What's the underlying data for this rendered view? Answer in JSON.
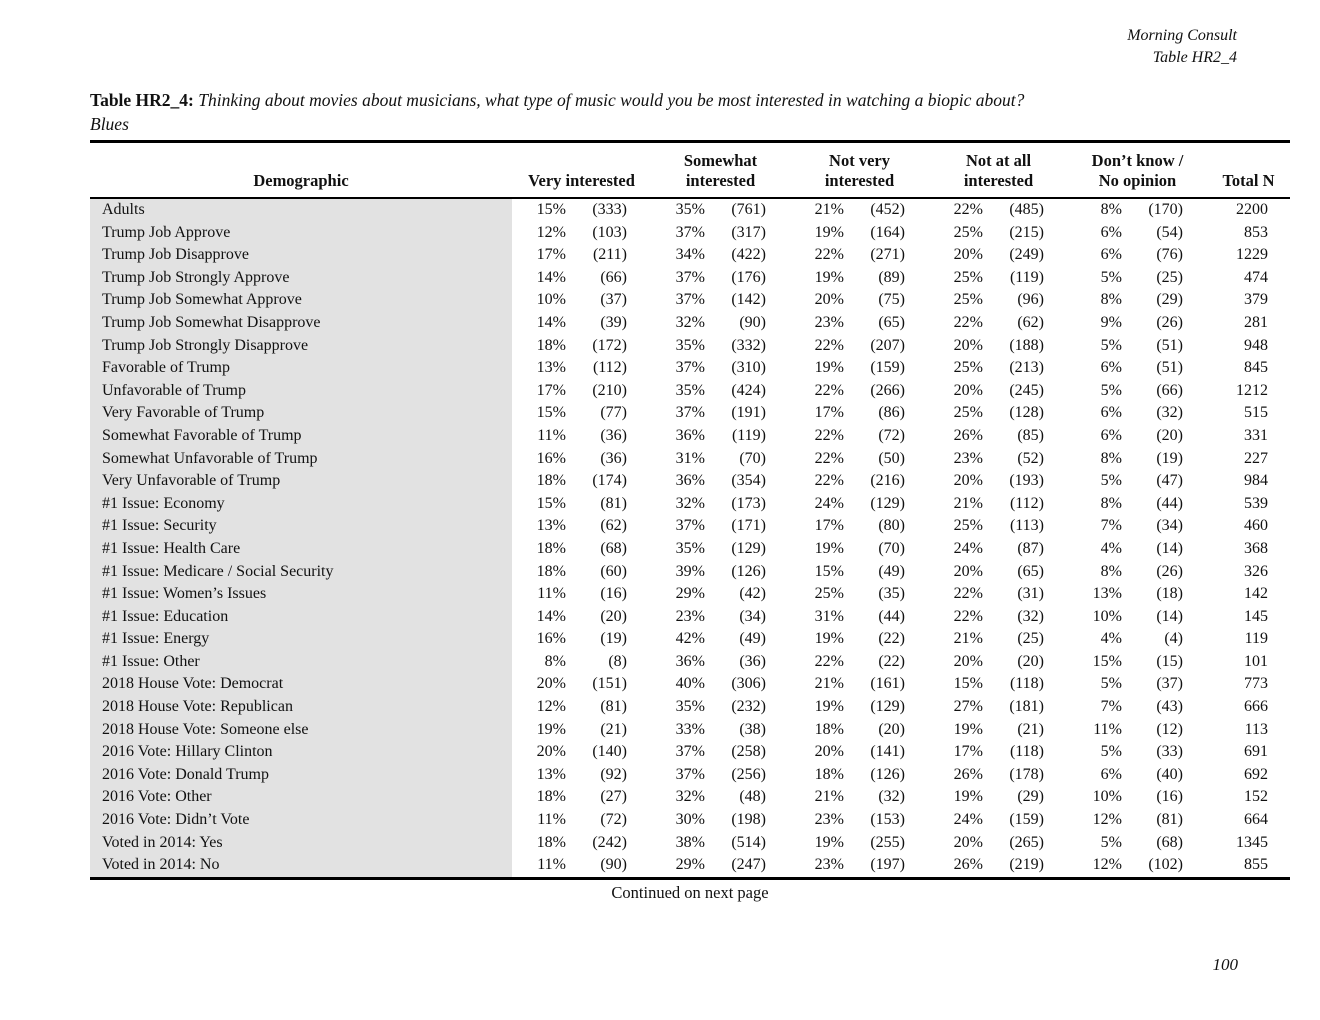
{
  "page": {
    "brand": "Morning Consult",
    "table_ref": "Table HR2_4",
    "continued_note": "Continued on next page",
    "page_number": "100"
  },
  "title": {
    "prefix": "Table HR2_4:",
    "question": "Thinking about movies about musicians, what type of music would you be most interested in watching a biopic about?",
    "subject": "Blues"
  },
  "table": {
    "demographic_header": "Demographic",
    "total_header": "Total N",
    "group_headers": [
      [
        "",
        "Very interested"
      ],
      [
        "Somewhat",
        "interested"
      ],
      [
        "Not very",
        "interested"
      ],
      [
        "Not at all",
        "interested"
      ],
      [
        "Don’t know /",
        "No opinion"
      ]
    ],
    "rows": [
      {
        "demographic": "Adults",
        "values": [
          "15%",
          "(333)",
          "35%",
          "(761)",
          "21%",
          "(452)",
          "22%",
          "(485)",
          "8%",
          "(170)"
        ],
        "total": "2200"
      },
      {
        "demographic": "Trump Job Approve",
        "values": [
          "12%",
          "(103)",
          "37%",
          "(317)",
          "19%",
          "(164)",
          "25%",
          "(215)",
          "6%",
          "(54)"
        ],
        "total": "853"
      },
      {
        "demographic": "Trump Job Disapprove",
        "values": [
          "17%",
          "(211)",
          "34%",
          "(422)",
          "22%",
          "(271)",
          "20%",
          "(249)",
          "6%",
          "(76)"
        ],
        "total": "1229"
      },
      {
        "demographic": "Trump Job Strongly Approve",
        "values": [
          "14%",
          "(66)",
          "37%",
          "(176)",
          "19%",
          "(89)",
          "25%",
          "(119)",
          "5%",
          "(25)"
        ],
        "total": "474"
      },
      {
        "demographic": "Trump Job Somewhat Approve",
        "values": [
          "10%",
          "(37)",
          "37%",
          "(142)",
          "20%",
          "(75)",
          "25%",
          "(96)",
          "8%",
          "(29)"
        ],
        "total": "379"
      },
      {
        "demographic": "Trump Job Somewhat Disapprove",
        "values": [
          "14%",
          "(39)",
          "32%",
          "(90)",
          "23%",
          "(65)",
          "22%",
          "(62)",
          "9%",
          "(26)"
        ],
        "total": "281"
      },
      {
        "demographic": "Trump Job Strongly Disapprove",
        "values": [
          "18%",
          "(172)",
          "35%",
          "(332)",
          "22%",
          "(207)",
          "20%",
          "(188)",
          "5%",
          "(51)"
        ],
        "total": "948"
      },
      {
        "demographic": "Favorable of Trump",
        "values": [
          "13%",
          "(112)",
          "37%",
          "(310)",
          "19%",
          "(159)",
          "25%",
          "(213)",
          "6%",
          "(51)"
        ],
        "total": "845"
      },
      {
        "demographic": "Unfavorable of Trump",
        "values": [
          "17%",
          "(210)",
          "35%",
          "(424)",
          "22%",
          "(266)",
          "20%",
          "(245)",
          "5%",
          "(66)"
        ],
        "total": "1212"
      },
      {
        "demographic": "Very Favorable of Trump",
        "values": [
          "15%",
          "(77)",
          "37%",
          "(191)",
          "17%",
          "(86)",
          "25%",
          "(128)",
          "6%",
          "(32)"
        ],
        "total": "515"
      },
      {
        "demographic": "Somewhat Favorable of Trump",
        "values": [
          "11%",
          "(36)",
          "36%",
          "(119)",
          "22%",
          "(72)",
          "26%",
          "(85)",
          "6%",
          "(20)"
        ],
        "total": "331"
      },
      {
        "demographic": "Somewhat Unfavorable of Trump",
        "values": [
          "16%",
          "(36)",
          "31%",
          "(70)",
          "22%",
          "(50)",
          "23%",
          "(52)",
          "8%",
          "(19)"
        ],
        "total": "227"
      },
      {
        "demographic": "Very Unfavorable of Trump",
        "values": [
          "18%",
          "(174)",
          "36%",
          "(354)",
          "22%",
          "(216)",
          "20%",
          "(193)",
          "5%",
          "(47)"
        ],
        "total": "984"
      },
      {
        "demographic": "#1 Issue: Economy",
        "values": [
          "15%",
          "(81)",
          "32%",
          "(173)",
          "24%",
          "(129)",
          "21%",
          "(112)",
          "8%",
          "(44)"
        ],
        "total": "539"
      },
      {
        "demographic": "#1 Issue: Security",
        "values": [
          "13%",
          "(62)",
          "37%",
          "(171)",
          "17%",
          "(80)",
          "25%",
          "(113)",
          "7%",
          "(34)"
        ],
        "total": "460"
      },
      {
        "demographic": "#1 Issue: Health Care",
        "values": [
          "18%",
          "(68)",
          "35%",
          "(129)",
          "19%",
          "(70)",
          "24%",
          "(87)",
          "4%",
          "(14)"
        ],
        "total": "368"
      },
      {
        "demographic": "#1 Issue: Medicare / Social Security",
        "values": [
          "18%",
          "(60)",
          "39%",
          "(126)",
          "15%",
          "(49)",
          "20%",
          "(65)",
          "8%",
          "(26)"
        ],
        "total": "326"
      },
      {
        "demographic": "#1 Issue: Women’s Issues",
        "values": [
          "11%",
          "(16)",
          "29%",
          "(42)",
          "25%",
          "(35)",
          "22%",
          "(31)",
          "13%",
          "(18)"
        ],
        "total": "142"
      },
      {
        "demographic": "#1 Issue: Education",
        "values": [
          "14%",
          "(20)",
          "23%",
          "(34)",
          "31%",
          "(44)",
          "22%",
          "(32)",
          "10%",
          "(14)"
        ],
        "total": "145"
      },
      {
        "demographic": "#1 Issue: Energy",
        "values": [
          "16%",
          "(19)",
          "42%",
          "(49)",
          "19%",
          "(22)",
          "21%",
          "(25)",
          "4%",
          "(4)"
        ],
        "total": "119"
      },
      {
        "demographic": "#1 Issue: Other",
        "values": [
          "8%",
          "(8)",
          "36%",
          "(36)",
          "22%",
          "(22)",
          "20%",
          "(20)",
          "15%",
          "(15)"
        ],
        "total": "101"
      },
      {
        "demographic": "2018 House Vote: Democrat",
        "values": [
          "20%",
          "(151)",
          "40%",
          "(306)",
          "21%",
          "(161)",
          "15%",
          "(118)",
          "5%",
          "(37)"
        ],
        "total": "773"
      },
      {
        "demographic": "2018 House Vote: Republican",
        "values": [
          "12%",
          "(81)",
          "35%",
          "(232)",
          "19%",
          "(129)",
          "27%",
          "(181)",
          "7%",
          "(43)"
        ],
        "total": "666"
      },
      {
        "demographic": "2018 House Vote: Someone else",
        "values": [
          "19%",
          "(21)",
          "33%",
          "(38)",
          "18%",
          "(20)",
          "19%",
          "(21)",
          "11%",
          "(12)"
        ],
        "total": "113"
      },
      {
        "demographic": "2016 Vote: Hillary Clinton",
        "values": [
          "20%",
          "(140)",
          "37%",
          "(258)",
          "20%",
          "(141)",
          "17%",
          "(118)",
          "5%",
          "(33)"
        ],
        "total": "691"
      },
      {
        "demographic": "2016 Vote: Donald Trump",
        "values": [
          "13%",
          "(92)",
          "37%",
          "(256)",
          "18%",
          "(126)",
          "26%",
          "(178)",
          "6%",
          "(40)"
        ],
        "total": "692"
      },
      {
        "demographic": "2016 Vote: Other",
        "values": [
          "18%",
          "(27)",
          "32%",
          "(48)",
          "21%",
          "(32)",
          "19%",
          "(29)",
          "10%",
          "(16)"
        ],
        "total": "152"
      },
      {
        "demographic": "2016 Vote: Didn’t Vote",
        "values": [
          "11%",
          "(72)",
          "30%",
          "(198)",
          "23%",
          "(153)",
          "24%",
          "(159)",
          "12%",
          "(81)"
        ],
        "total": "664"
      },
      {
        "demographic": "Voted in 2014: Yes",
        "values": [
          "18%",
          "(242)",
          "38%",
          "(514)",
          "19%",
          "(255)",
          "20%",
          "(265)",
          "5%",
          "(68)"
        ],
        "total": "1345"
      },
      {
        "demographic": "Voted in 2014: No",
        "values": [
          "11%",
          "(90)",
          "29%",
          "(247)",
          "23%",
          "(197)",
          "26%",
          "(219)",
          "12%",
          "(102)"
        ],
        "total": "855"
      }
    ]
  }
}
